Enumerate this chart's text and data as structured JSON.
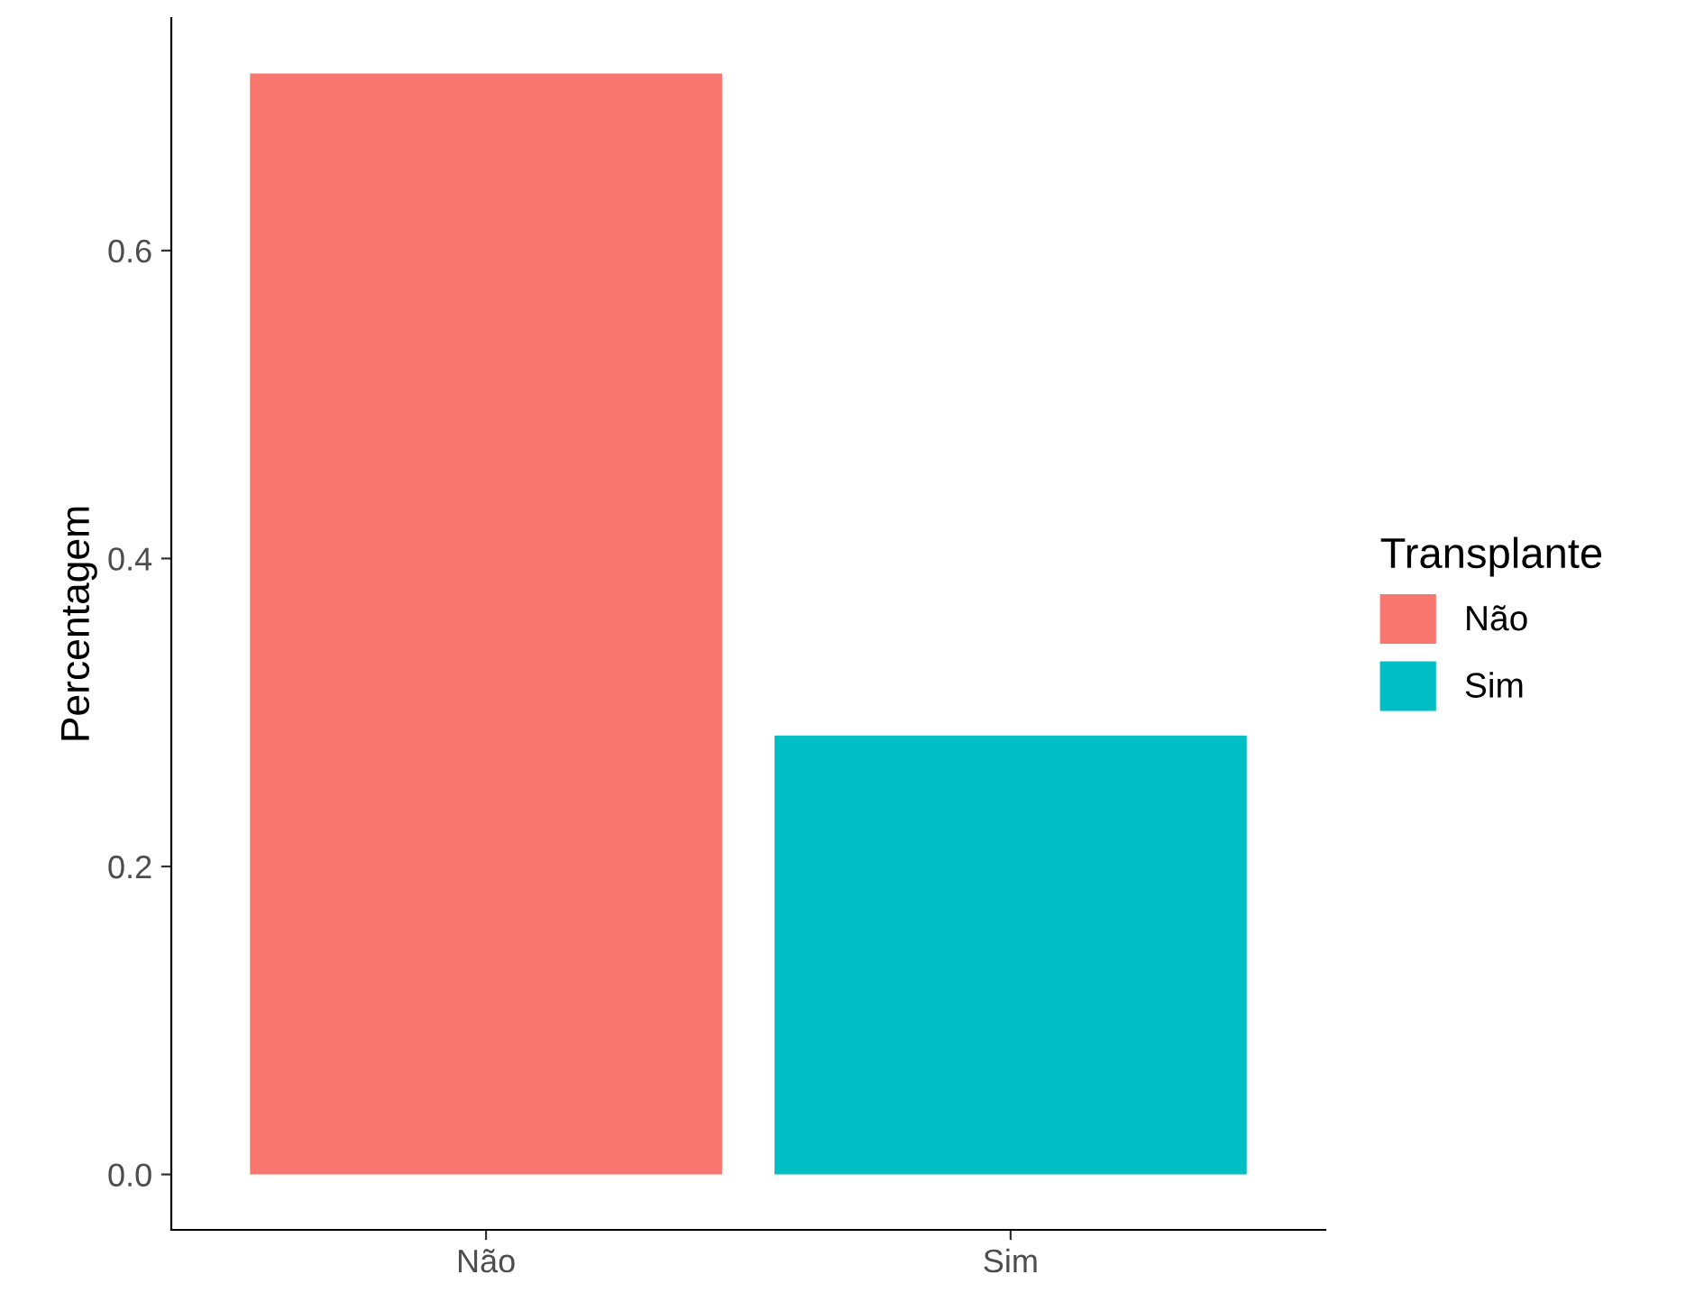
{
  "chart_data": {
    "type": "bar",
    "ylabel": "Percentagem",
    "legend_title": "Transplante",
    "categories": [
      "Não",
      "Sim"
    ],
    "series": [
      {
        "name": "Não",
        "color": "#f8766d",
        "values": [
          0.715,
          null
        ]
      },
      {
        "name": "Sim",
        "color": "#00bfc4",
        "values": [
          null,
          0.285
        ]
      }
    ],
    "ylim": [
      -0.036,
      0.751
    ],
    "yticks": [
      {
        "value": 0,
        "label": "0.0"
      },
      {
        "value": 0.2,
        "label": "0.2"
      },
      {
        "value": 0.4,
        "label": "0.4"
      },
      {
        "value": 0.6,
        "label": "0.6"
      }
    ],
    "grid": false,
    "legend": "right"
  }
}
